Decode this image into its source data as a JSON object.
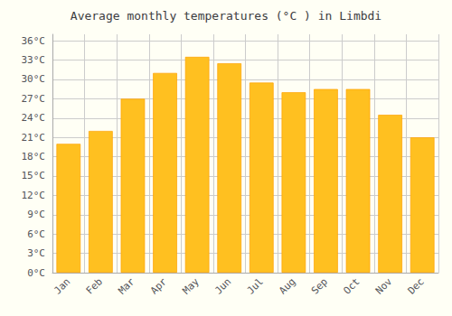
{
  "chart_data": {
    "type": "bar",
    "title": "Average monthly temperatures (°C ) in Limbdi",
    "categories": [
      "Jan",
      "Feb",
      "Mar",
      "Apr",
      "May",
      "Jun",
      "Jul",
      "Aug",
      "Sep",
      "Oct",
      "Nov",
      "Dec"
    ],
    "values": [
      20,
      22,
      27,
      31,
      33.5,
      32.5,
      29.5,
      28,
      28.5,
      28.5,
      24.5,
      21
    ],
    "color": "#FFC020",
    "ylim": [
      0,
      37
    ],
    "yticks": [
      {
        "value": 0,
        "label": "0°C"
      },
      {
        "value": 3,
        "label": "3°C"
      },
      {
        "value": 6,
        "label": "6°C"
      },
      {
        "value": 9,
        "label": "9°C"
      },
      {
        "value": 12,
        "label": "12°C"
      },
      {
        "value": 15,
        "label": "15°C"
      },
      {
        "value": 18,
        "label": "18°C"
      },
      {
        "value": 21,
        "label": "21°C"
      },
      {
        "value": 24,
        "label": "24°C"
      },
      {
        "value": 27,
        "label": "27°C"
      },
      {
        "value": 30,
        "label": "30°C"
      },
      {
        "value": 33,
        "label": "33°C"
      },
      {
        "value": 36,
        "label": "36°C"
      }
    ],
    "grid": true
  }
}
